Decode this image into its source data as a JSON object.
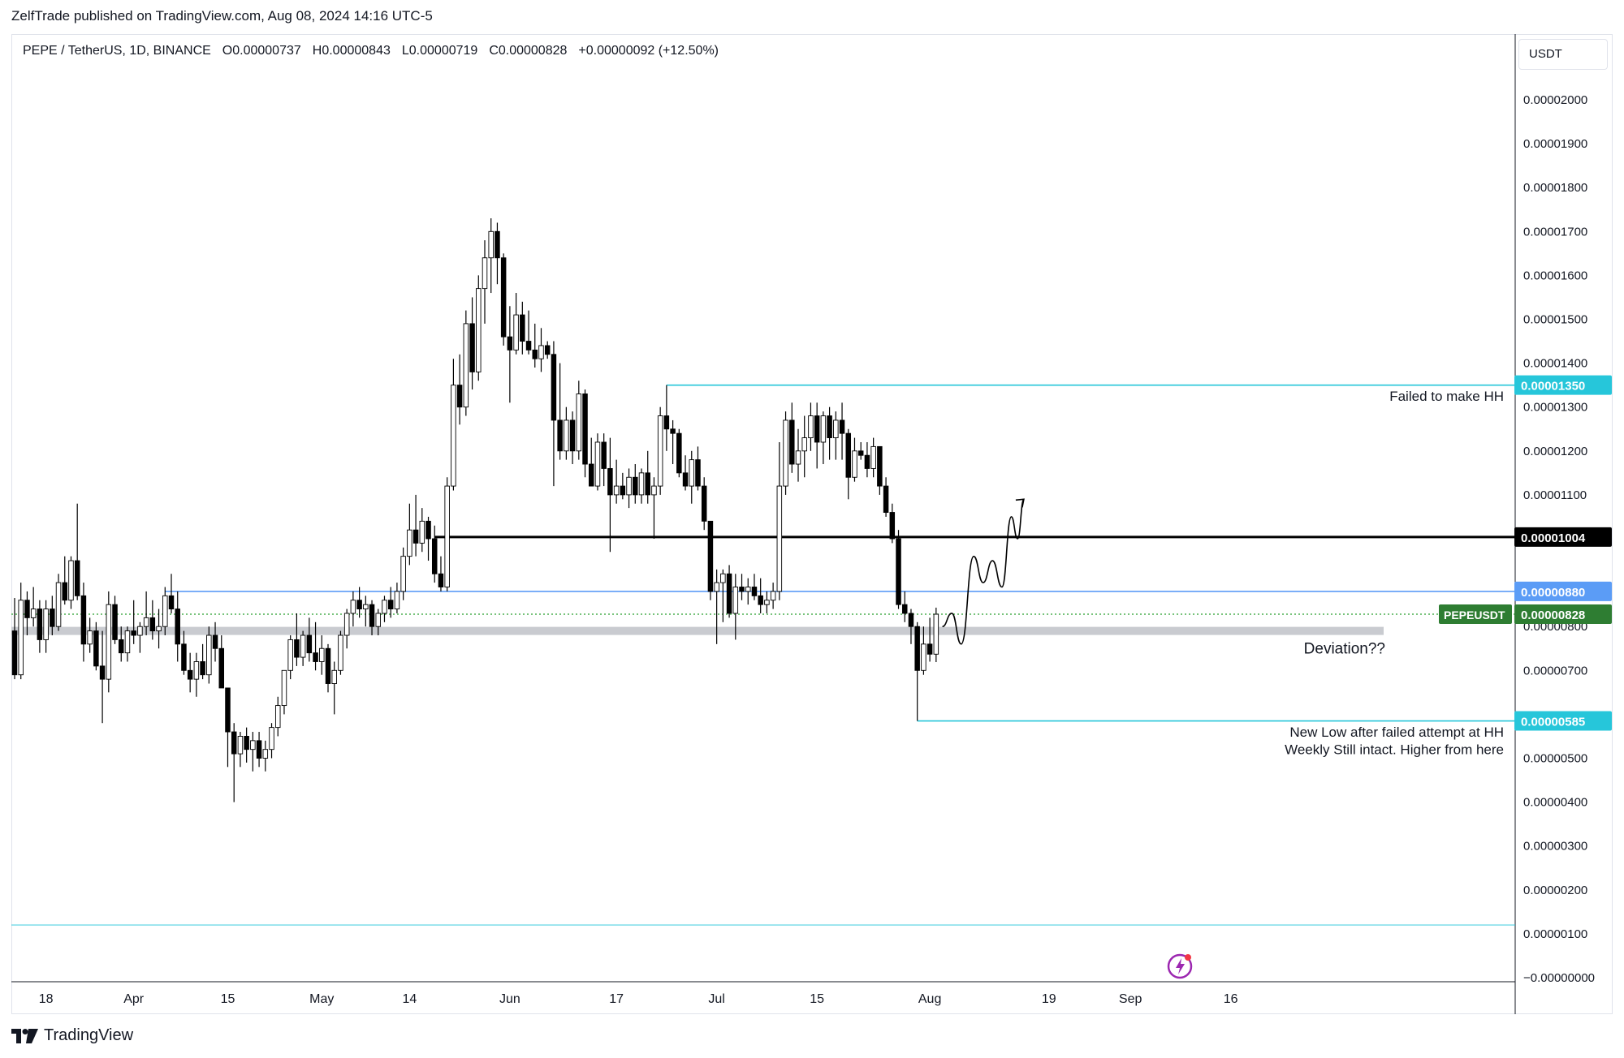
{
  "publisher_line": "ZelfTrade published on TradingView.com, Aug 08, 2024 14:16 UTC-5",
  "header": {
    "symbol": "PEPE / TetherUS, 1D, BINANCE",
    "open": "O0.00000737",
    "high": "H0.00000843",
    "low": "L0.00000719",
    "close": "C0.00000828",
    "change": "+0.00000092 (+12.50%)"
  },
  "currency": "USDT",
  "brand": "TradingView",
  "colors": {
    "up_body": "#ffffff",
    "down_body": "#000000",
    "wick": "#000000",
    "cyan": "#26c6da",
    "blue": "#5b9cf6",
    "green_label": "#2e7d32",
    "zone_grey": "#c9cbd0",
    "dotted_green": "#4caf50",
    "flash_icon": "#9c27b0"
  },
  "chart_data": {
    "type": "candlestick",
    "pair": "PEPE / TetherUS",
    "interval": "1D",
    "exchange": "BINANCE",
    "y_axis": {
      "ylim": [
        0,
        2.2e-06
      ],
      "ticks": [
        "0.00002000",
        "0.00001900",
        "0.00001800",
        "0.00001700",
        "0.00001600",
        "0.00001500",
        "0.00001400",
        "0.00001300",
        "0.00001200",
        "0.00001100",
        "0.00000800",
        "0.00000700",
        "0.00000500",
        "0.00000400",
        "0.00000300",
        "0.00000200",
        "0.00000100",
        "−0.00000000"
      ],
      "tick_values": [
        2e-05,
        1.9e-05,
        1.8e-05,
        1.7e-05,
        1.6e-05,
        1.5e-05,
        1.4e-05,
        1.3e-05,
        1.2e-05,
        1.1e-05,
        8e-06,
        7e-06,
        5e-06,
        4e-06,
        3e-06,
        2e-06,
        1e-06,
        0
      ]
    },
    "x_axis": {
      "labels": [
        "18",
        "Apr",
        "15",
        "May",
        "14",
        "Jun",
        "17",
        "Jul",
        "15",
        "Aug",
        "19",
        "Sep",
        "16"
      ],
      "label_index": [
        5,
        19,
        34,
        49,
        63,
        79,
        96,
        112,
        128,
        146,
        165,
        178,
        194
      ]
    },
    "candles": [
      [
        7.9e-06,
        8.65e-06,
        6.8e-06,
        6.9e-06
      ],
      [
        6.9e-06,
        9e-06,
        6.8e-06,
        8.6e-06
      ],
      [
        8.6e-06,
        8.8e-06,
        7.8e-06,
        8.2e-06
      ],
      [
        8.2e-06,
        8.9e-06,
        8e-06,
        8.4e-06
      ],
      [
        8.4e-06,
        8.6e-06,
        7.4e-06,
        7.7e-06
      ],
      [
        7.7e-06,
        8.6e-06,
        7.4e-06,
        8.4e-06
      ],
      [
        8.4e-06,
        8.7e-06,
        7.8e-06,
        8e-06
      ],
      [
        8e-06,
        9.2e-06,
        7.9e-06,
        9e-06
      ],
      [
        9e-06,
        9.6e-06,
        8.5e-06,
        8.6e-06
      ],
      [
        8.6e-06,
        9.6e-06,
        8.4e-06,
        9.5e-06
      ],
      [
        9.5e-06,
        1.08e-05,
        8.6e-06,
        8.7e-06
      ],
      [
        8.7e-06,
        9e-06,
        7.2e-06,
        7.6e-06
      ],
      [
        7.6e-06,
        8.2e-06,
        7.4e-06,
        7.9e-06
      ],
      [
        7.9e-06,
        8.1e-06,
        7e-06,
        7.1e-06
      ],
      [
        7.1e-06,
        7.9e-06,
        5.8e-06,
        6.8e-06
      ],
      [
        6.8e-06,
        8.8e-06,
        6.5e-06,
        8.5e-06
      ],
      [
        8.5e-06,
        8.7e-06,
        7.6e-06,
        7.7e-06
      ],
      [
        7.7e-06,
        8e-06,
        7.2e-06,
        7.4e-06
      ],
      [
        7.4e-06,
        8e-06,
        7.2e-06,
        7.9e-06
      ],
      [
        7.9e-06,
        8.6e-06,
        7.6e-06,
        7.8e-06
      ],
      [
        7.8e-06,
        8.1e-06,
        7.4e-06,
        8e-06
      ],
      [
        8e-06,
        8.8e-06,
        7.8e-06,
        8.2e-06
      ],
      [
        8.2e-06,
        8.6e-06,
        7.7e-06,
        7.9e-06
      ],
      [
        7.9e-06,
        8.4e-06,
        7.5e-06,
        8e-06
      ],
      [
        8e-06,
        8.9e-06,
        7.8e-06,
        8.7e-06
      ],
      [
        8.7e-06,
        9.2e-06,
        8.3e-06,
        8.4e-06
      ],
      [
        8.4e-06,
        8.8e-06,
        7.2e-06,
        7.6e-06
      ],
      [
        7.6e-06,
        7.9e-06,
        6.9e-06,
        7e-06
      ],
      [
        7e-06,
        7.4e-06,
        6.5e-06,
        6.8e-06
      ],
      [
        6.8e-06,
        7.4e-06,
        6.4e-06,
        7.2e-06
      ],
      [
        7.2e-06,
        7.6e-06,
        6.8e-06,
        6.9e-06
      ],
      [
        6.9e-06,
        8e-06,
        6.7e-06,
        7.8e-06
      ],
      [
        7.8e-06,
        8.1e-06,
        7.2e-06,
        7.5e-06
      ],
      [
        7.5e-06,
        7.8e-06,
        6.6e-06,
        6.6e-06
      ],
      [
        6.6e-06,
        6.6e-06,
        4.8e-06,
        5.6e-06
      ],
      [
        5.6e-06,
        5.8e-06,
        4e-06,
        5.1e-06
      ],
      [
        5.1e-06,
        5.6e-06,
        4.8e-06,
        5.5e-06
      ],
      [
        5.5e-06,
        5.7e-06,
        4.9e-06,
        5.2e-06
      ],
      [
        5.2e-06,
        5.6e-06,
        4.7e-06,
        5.4e-06
      ],
      [
        5.4e-06,
        5.6e-06,
        4.8e-06,
        5e-06
      ],
      [
        5e-06,
        5.4e-06,
        4.7e-06,
        5.2e-06
      ],
      [
        5.2e-06,
        5.8e-06,
        5e-06,
        5.7e-06
      ],
      [
        5.7e-06,
        6.4e-06,
        5.5e-06,
        6.2e-06
      ],
      [
        6.2e-06,
        7e-06,
        6e-06,
        7e-06
      ],
      [
        7e-06,
        7.8e-06,
        6.8e-06,
        7.7e-06
      ],
      [
        7.7e-06,
        8.3e-06,
        7.1e-06,
        7.3e-06
      ],
      [
        7.3e-06,
        7.9e-06,
        7.1e-06,
        7.8e-06
      ],
      [
        7.8e-06,
        8.2e-06,
        7.2e-06,
        7.4e-06
      ],
      [
        7.4e-06,
        8.1e-06,
        7e-06,
        7.2e-06
      ],
      [
        7.2e-06,
        7.8e-06,
        6.9e-06,
        7.5e-06
      ],
      [
        7.5e-06,
        7.6e-06,
        6.5e-06,
        6.7e-06
      ],
      [
        6.7e-06,
        7.2e-06,
        6e-06,
        7e-06
      ],
      [
        7e-06,
        7.9e-06,
        6.9e-06,
        7.8e-06
      ],
      [
        7.8e-06,
        8.4e-06,
        7.5e-06,
        8.3e-06
      ],
      [
        8.3e-06,
        8.8e-06,
        8e-06,
        8.6e-06
      ],
      [
        8.6e-06,
        8.9e-06,
        8.2e-06,
        8.4e-06
      ],
      [
        8.4e-06,
        8.7e-06,
        8e-06,
        8.5e-06
      ],
      [
        8.5e-06,
        8.6e-06,
        7.8e-06,
        8e-06
      ],
      [
        8e-06,
        8.4e-06,
        7.8e-06,
        8.3e-06
      ],
      [
        8.3e-06,
        8.7e-06,
        8.1e-06,
        8.6e-06
      ],
      [
        8.6e-06,
        8.9e-06,
        8.2e-06,
        8.4e-06
      ],
      [
        8.4e-06,
        9e-06,
        8.3e-06,
        8.8e-06
      ],
      [
        8.8e-06,
        9.8e-06,
        8.6e-06,
        9.6e-06
      ],
      [
        9.6e-06,
        1.08e-05,
        9.4e-06,
        1.02e-05
      ],
      [
        1.02e-05,
        1.1e-05,
        9.6e-06,
        9.9e-06
      ],
      [
        9.9e-06,
        1.07e-05,
        9.7e-06,
        1.04e-05
      ],
      [
        1.04e-05,
        1.05e-05,
        9.5e-06,
        1e-05
      ],
      [
        1e-05,
        1.03e-05,
        9e-06,
        9.2e-06
      ],
      [
        9.2e-06,
        9.6e-06,
        8.8e-06,
        8.9e-06
      ],
      [
        8.9e-06,
        1.14e-05,
        8.8e-06,
        1.12e-05
      ],
      [
        1.12e-05,
        1.41e-05,
        1.11e-05,
        1.35e-05
      ],
      [
        1.35e-05,
        1.42e-05,
        1.26e-05,
        1.3e-05
      ],
      [
        1.3e-05,
        1.52e-05,
        1.28e-05,
        1.49e-05
      ],
      [
        1.49e-05,
        1.55e-05,
        1.34e-05,
        1.38e-05
      ],
      [
        1.38e-05,
        1.6e-05,
        1.36e-05,
        1.57e-05
      ],
      [
        1.57e-05,
        1.68e-05,
        1.49e-05,
        1.64e-05
      ],
      [
        1.64e-05,
        1.73e-05,
        1.56e-05,
        1.7e-05
      ],
      [
        1.7e-05,
        1.72e-05,
        1.58e-05,
        1.64e-05
      ],
      [
        1.64e-05,
        1.65e-05,
        1.44e-05,
        1.46e-05
      ],
      [
        1.46e-05,
        1.53e-05,
        1.31e-05,
        1.43e-05
      ],
      [
        1.43e-05,
        1.56e-05,
        1.42e-05,
        1.51e-05
      ],
      [
        1.51e-05,
        1.54e-05,
        1.42e-05,
        1.45e-05
      ],
      [
        1.45e-05,
        1.52e-05,
        1.42e-05,
        1.43e-05
      ],
      [
        1.43e-05,
        1.49e-05,
        1.39e-05,
        1.41e-05
      ],
      [
        1.41e-05,
        1.48e-05,
        1.38e-05,
        1.44e-05
      ],
      [
        1.44e-05,
        1.45e-05,
        1.41e-05,
        1.42e-05
      ],
      [
        1.42e-05,
        1.45e-05,
        1.12e-05,
        1.27e-05
      ],
      [
        1.27e-05,
        1.4e-05,
        1.18e-05,
        1.2e-05
      ],
      [
        1.2e-05,
        1.3e-05,
        1.18e-05,
        1.27e-05
      ],
      [
        1.27e-05,
        1.29e-05,
        1.17e-05,
        1.2e-05
      ],
      [
        1.2e-05,
        1.36e-05,
        1.18e-05,
        1.33e-05
      ],
      [
        1.33e-05,
        1.34e-05,
        1.14e-05,
        1.17e-05
      ],
      [
        1.17e-05,
        1.23e-05,
        1.12e-05,
        1.12e-05
      ],
      [
        1.12e-05,
        1.24e-05,
        1.11e-05,
        1.22e-05
      ],
      [
        1.22e-05,
        1.24e-05,
        1.12e-05,
        1.16e-05
      ],
      [
        1.16e-05,
        1.23e-05,
        9.7e-06,
        1.1e-05
      ],
      [
        1.1e-05,
        1.18e-05,
        1.08e-05,
        1.12e-05
      ],
      [
        1.12e-05,
        1.15e-05,
        1.09e-05,
        1.1e-05
      ],
      [
        1.1e-05,
        1.16e-05,
        1.07e-05,
        1.14e-05
      ],
      [
        1.14e-05,
        1.17e-05,
        1.08e-05,
        1.1e-05
      ],
      [
        1.1e-05,
        1.16e-05,
        1.08e-05,
        1.15e-05
      ],
      [
        1.15e-05,
        1.2e-05,
        1.08e-05,
        1.1e-05
      ],
      [
        1.1e-05,
        1.14e-05,
        1e-05,
        1.12e-05
      ],
      [
        1.12e-05,
        1.3e-05,
        1.1e-05,
        1.28e-05
      ],
      [
        1.28e-05,
        1.35e-05,
        1.2e-05,
        1.25e-05
      ],
      [
        1.25e-05,
        1.27e-05,
        1.17e-05,
        1.24e-05
      ],
      [
        1.24e-05,
        1.25e-05,
        1.14e-05,
        1.15e-05
      ],
      [
        1.15e-05,
        1.19e-05,
        1.11e-05,
        1.12e-05
      ],
      [
        1.12e-05,
        1.2e-05,
        1.08e-05,
        1.18e-05
      ],
      [
        1.18e-05,
        1.21e-05,
        1.11e-05,
        1.12e-05
      ],
      [
        1.12e-05,
        1.14e-05,
        1.02e-05,
        1.04e-05
      ],
      [
        1.04e-05,
        1.04e-05,
        8.6e-06,
        8.8e-06
      ],
      [
        8.8e-06,
        9.3e-06,
        7.6e-06,
        9e-06
      ],
      [
        9e-06,
        9.3e-06,
        8.1e-06,
        9.2e-06
      ],
      [
        9.2e-06,
        9.4e-06,
        8.2e-06,
        8.3e-06
      ],
      [
        8.3e-06,
        9.2e-06,
        7.7e-06,
        8.9e-06
      ],
      [
        8.9e-06,
        9.2e-06,
        8.6e-06,
        8.8e-06
      ],
      [
        8.8e-06,
        9.1e-06,
        8.5e-06,
        8.9e-06
      ],
      [
        8.9e-06,
        9.2e-06,
        8.6e-06,
        8.7e-06
      ],
      [
        8.7e-06,
        9.1e-06,
        8.3e-06,
        8.5e-06
      ],
      [
        8.5e-06,
        8.8e-06,
        8.3e-06,
        8.6e-06
      ],
      [
        8.6e-06,
        9e-06,
        8.4e-06,
        8.8e-06
      ],
      [
        8.8e-06,
        1.22e-05,
        8.6e-06,
        1.12e-05
      ],
      [
        1.12e-05,
        1.29e-05,
        1.1e-05,
        1.27e-05
      ],
      [
        1.27e-05,
        1.31e-05,
        1.15e-05,
        1.17e-05
      ],
      [
        1.17e-05,
        1.25e-05,
        1.13e-05,
        1.2e-05
      ],
      [
        1.2e-05,
        1.28e-05,
        1.14e-05,
        1.23e-05
      ],
      [
        1.23e-05,
        1.31e-05,
        1.2e-05,
        1.28e-05
      ],
      [
        1.28e-05,
        1.31e-05,
        1.16e-05,
        1.22e-05
      ],
      [
        1.22e-05,
        1.29e-05,
        1.17e-05,
        1.28e-05
      ],
      [
        1.28e-05,
        1.3e-05,
        1.18e-05,
        1.23e-05
      ],
      [
        1.23e-05,
        1.29e-05,
        1.18e-05,
        1.27e-05
      ],
      [
        1.27e-05,
        1.31e-05,
        1.18e-05,
        1.24e-05
      ],
      [
        1.24e-05,
        1.25e-05,
        1.09e-05,
        1.14e-05
      ],
      [
        1.14e-05,
        1.23e-05,
        1.13e-05,
        1.2e-05
      ],
      [
        1.2e-05,
        1.22e-05,
        1.18e-05,
        1.19e-05
      ],
      [
        1.19e-05,
        1.22e-05,
        1.14e-05,
        1.16e-05
      ],
      [
        1.16e-05,
        1.23e-05,
        1.14e-05,
        1.21e-05
      ],
      [
        1.21e-05,
        1.21e-05,
        1.1e-05,
        1.12e-05
      ],
      [
        1.12e-05,
        1.14e-05,
        1.05e-05,
        1.06e-05
      ],
      [
        1.06e-05,
        1.08e-05,
        9.9e-06,
        1e-05
      ],
      [
        1e-05,
        1.02e-05,
        8.4e-06,
        8.5e-06
      ],
      [
        8.5e-06,
        8.8e-06,
        8.1e-06,
        8.3e-06
      ],
      [
        8.3e-06,
        8.4e-06,
        7.6e-06,
        8e-06
      ],
      [
        8e-06,
        8.1e-06,
        5.85e-06,
        7e-06
      ],
      [
        7e-06,
        8e-06,
        6.9e-06,
        7.6e-06
      ],
      [
        7.6e-06,
        8.2e-06,
        7.2e-06,
        7.37e-06
      ],
      [
        7.37e-06,
        8.43e-06,
        7.19e-06,
        8.28e-06
      ]
    ],
    "levels": [
      {
        "value": 1.35e-05,
        "label": "0.00001350",
        "color": "cyan",
        "start_index": 104
      },
      {
        "value": 1.004e-05,
        "label": "0.00001004",
        "color": "black",
        "start_index": 67
      },
      {
        "value": 8.8e-06,
        "label": "0.00000880",
        "color": "blue",
        "start_index": 24
      },
      {
        "value": 8.28e-06,
        "label": "0.00000828",
        "name": "PEPEUSDT",
        "color": "green",
        "style": "dotted"
      },
      {
        "value": 5.85e-06,
        "label": "0.00000585",
        "color": "cyan",
        "start_index": 144
      },
      {
        "value": 1.2e-06,
        "color": "cyan",
        "style": "thin",
        "start_index": 0
      }
    ],
    "zone": {
      "value": 7.9e-06
    },
    "projection": [
      [
        148,
        8e-06
      ],
      [
        149.5,
        8.3e-06
      ],
      [
        151,
        7.6e-06
      ],
      [
        153,
        9.6e-06
      ],
      [
        154.5,
        9e-06
      ],
      [
        156,
        9.5e-06
      ],
      [
        157.5,
        8.9e-06
      ],
      [
        159,
        1.05e-05
      ],
      [
        160,
        1e-05
      ],
      [
        161,
        1.09e-05
      ]
    ],
    "annotations": [
      {
        "text": "Failed to make HH",
        "value": 1.325e-05
      },
      {
        "text": "Deviation??",
        "value": 7.5e-06
      },
      {
        "text": "New Low after failed attempt at HH",
        "value": 5.6e-06
      },
      {
        "text": "Weekly Still intact. Higher from here",
        "value": 5.2e-06
      }
    ]
  }
}
